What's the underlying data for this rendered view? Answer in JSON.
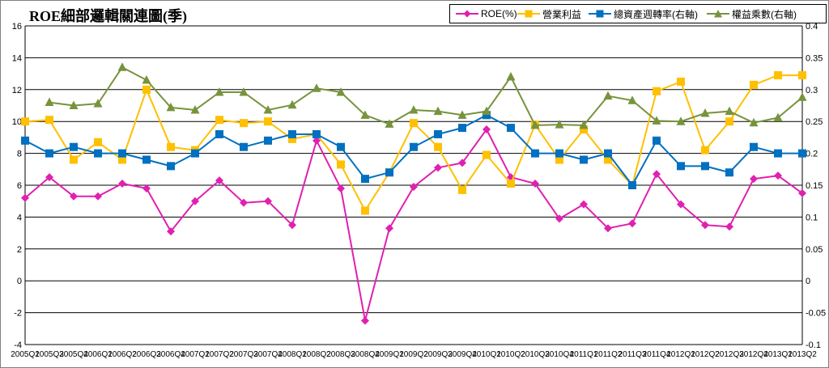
{
  "chart_data": {
    "type": "line",
    "title": "ROE細部邏輯關連圖(季)",
    "legend_position": "top-right",
    "grid": true,
    "categories": [
      "2005Q1",
      "2005Q3",
      "2005Q4",
      "2006Q1",
      "2006Q2",
      "2006Q3",
      "2006Q4",
      "2007Q1",
      "2007Q2",
      "2007Q3",
      "2007Q4",
      "2008Q1",
      "2008Q2",
      "2008Q3",
      "2008Q4",
      "2009Q1",
      "2009Q2",
      "2009Q3",
      "2009Q4",
      "2010Q1",
      "2010Q2",
      "2010Q3",
      "2010Q4",
      "2011Q1",
      "2011Q2",
      "2011Q3",
      "2011Q4",
      "2012Q1",
      "2012Q2",
      "2012Q3",
      "2012Q4",
      "2013Q1",
      "2013Q2"
    ],
    "y_left": {
      "ylim": [
        -4,
        16
      ],
      "ticks": [
        -4,
        -2,
        0,
        2,
        4,
        6,
        8,
        10,
        12,
        14,
        16
      ]
    },
    "y_right": {
      "ylim": [
        -0.1,
        0.4
      ],
      "ticks": [
        "-0.1",
        "-0.05",
        "0",
        "0.05",
        "0.1",
        "0.15",
        "0.2",
        "0.25",
        "0.3",
        "0.35",
        "0.4"
      ]
    },
    "series": [
      {
        "name": "ROE(%)",
        "axis": "left",
        "color": "#E020B0",
        "marker": "diamond",
        "values": [
          5.2,
          6.5,
          5.3,
          5.3,
          6.1,
          5.8,
          3.1,
          5.0,
          6.3,
          4.9,
          5.0,
          3.5,
          8.8,
          5.8,
          -2.5,
          3.3,
          5.9,
          7.1,
          7.4,
          9.5,
          6.5,
          6.1,
          3.9,
          4.8,
          3.3,
          3.6,
          6.7,
          4.8,
          3.5,
          3.4,
          6.4,
          6.6,
          5.5
        ]
      },
      {
        "name": "營業利益",
        "axis": "left",
        "color": "#FFC000",
        "marker": "square",
        "values": [
          10.0,
          10.1,
          7.6,
          8.7,
          7.6,
          12.0,
          8.4,
          8.2,
          10.1,
          9.9,
          10.0,
          8.9,
          9.2,
          7.3,
          4.4,
          6.8,
          9.9,
          8.4,
          5.7,
          7.9,
          6.1,
          9.8,
          7.6,
          9.5,
          7.6,
          6.0,
          11.9,
          12.5,
          8.2,
          10.0,
          12.3,
          12.9,
          12.9
        ]
      },
      {
        "name": "總資產週轉率(右軸)",
        "axis": "right",
        "color": "#0070C0",
        "marker": "square",
        "values": [
          0.22,
          0.2,
          0.21,
          0.2,
          0.2,
          0.19,
          0.18,
          0.2,
          0.23,
          0.21,
          0.22,
          0.23,
          0.23,
          0.21,
          0.16,
          0.17,
          0.21,
          0.23,
          0.24,
          0.26,
          0.24,
          0.2,
          0.2,
          0.19,
          0.2,
          0.15,
          0.22,
          0.18,
          0.18,
          0.17,
          0.21,
          0.2,
          0.2
        ]
      },
      {
        "name": "權益乘數(右軸)",
        "axis": "right",
        "color": "#77933C",
        "marker": "triangle",
        "values": [
          null,
          0.28,
          0.275,
          0.278,
          0.335,
          0.315,
          0.272,
          0.268,
          0.296,
          0.296,
          0.268,
          0.276,
          0.302,
          0.296,
          0.26,
          0.246,
          0.268,
          0.266,
          0.26,
          0.266,
          0.32,
          0.244,
          0.245,
          0.244,
          0.29,
          0.283,
          0.251,
          0.25,
          0.263,
          0.266,
          0.248,
          0.256,
          0.288
        ]
      }
    ]
  }
}
